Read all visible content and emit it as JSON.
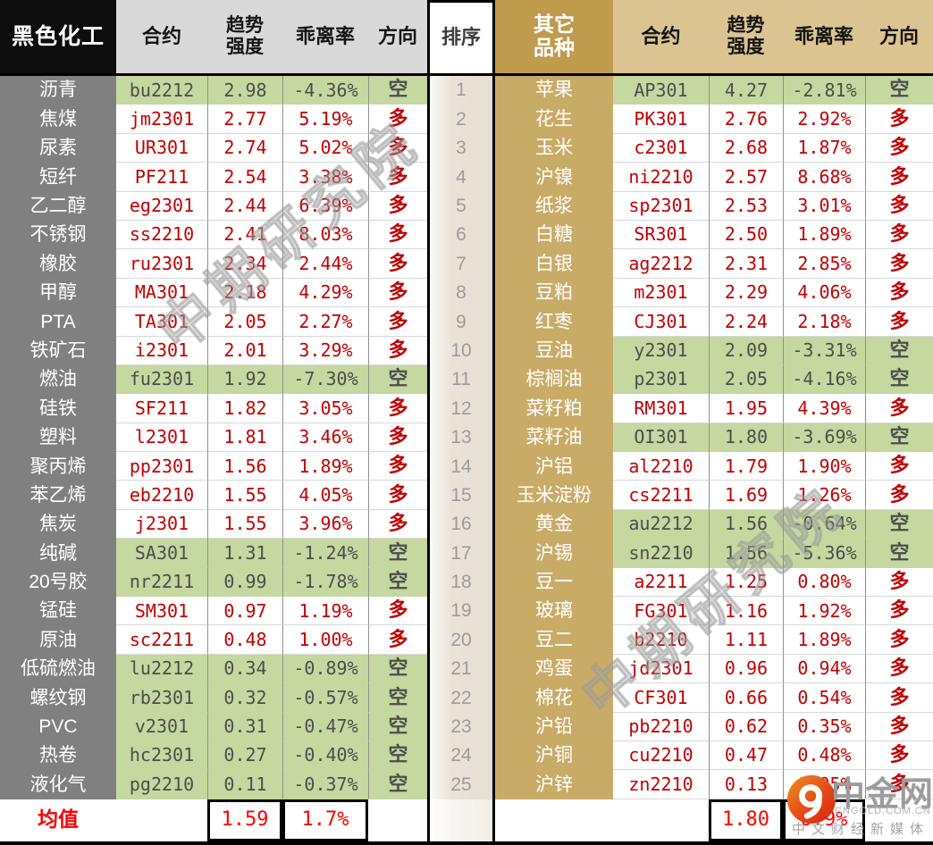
{
  "chart_data": [
    {
      "type": "table",
      "title": "黑色化工",
      "columns": [
        "黑色化工",
        "合约",
        "趋势强度",
        "乖离率",
        "方向"
      ],
      "header": {
        "variety": "黑色化工",
        "contract": "合约",
        "trend": "趋势\n强度",
        "deviation": "乖离率",
        "direction": "方向"
      },
      "rows": [
        {
          "name": "沥青",
          "contract": "bu2212",
          "trend": "2.98",
          "deviation": "-4.36%",
          "direction": "空"
        },
        {
          "name": "焦煤",
          "contract": "jm2301",
          "trend": "2.77",
          "deviation": "5.19%",
          "direction": "多"
        },
        {
          "name": "尿素",
          "contract": "UR301",
          "trend": "2.74",
          "deviation": "5.02%",
          "direction": "多"
        },
        {
          "name": "短纤",
          "contract": "PF211",
          "trend": "2.54",
          "deviation": "3.38%",
          "direction": "多"
        },
        {
          "name": "乙二醇",
          "contract": "eg2301",
          "trend": "2.44",
          "deviation": "6.39%",
          "direction": "多"
        },
        {
          "name": "不锈钢",
          "contract": "ss2210",
          "trend": "2.41",
          "deviation": "8.03%",
          "direction": "多"
        },
        {
          "name": "橡胶",
          "contract": "ru2301",
          "trend": "2.34",
          "deviation": "2.44%",
          "direction": "多"
        },
        {
          "name": "甲醇",
          "contract": "MA301",
          "trend": "2.18",
          "deviation": "4.29%",
          "direction": "多"
        },
        {
          "name": "PTA",
          "contract": "TA301",
          "trend": "2.05",
          "deviation": "2.27%",
          "direction": "多"
        },
        {
          "name": "铁矿石",
          "contract": "i2301",
          "trend": "2.01",
          "deviation": "3.29%",
          "direction": "多"
        },
        {
          "name": "燃油",
          "contract": "fu2301",
          "trend": "1.92",
          "deviation": "-7.30%",
          "direction": "空"
        },
        {
          "name": "硅铁",
          "contract": "SF211",
          "trend": "1.82",
          "deviation": "3.05%",
          "direction": "多"
        },
        {
          "name": "塑料",
          "contract": "l2301",
          "trend": "1.81",
          "deviation": "3.46%",
          "direction": "多"
        },
        {
          "name": "聚丙烯",
          "contract": "pp2301",
          "trend": "1.56",
          "deviation": "1.89%",
          "direction": "多"
        },
        {
          "name": "苯乙烯",
          "contract": "eb2210",
          "trend": "1.55",
          "deviation": "4.05%",
          "direction": "多"
        },
        {
          "name": "焦炭",
          "contract": "j2301",
          "trend": "1.55",
          "deviation": "3.96%",
          "direction": "多"
        },
        {
          "name": "纯碱",
          "contract": "SA301",
          "trend": "1.31",
          "deviation": "-1.24%",
          "direction": "空"
        },
        {
          "name": "20号胶",
          "contract": "nr2211",
          "trend": "0.99",
          "deviation": "-1.78%",
          "direction": "空"
        },
        {
          "name": "锰硅",
          "contract": "SM301",
          "trend": "0.97",
          "deviation": "1.19%",
          "direction": "多"
        },
        {
          "name": "原油",
          "contract": "sc2211",
          "trend": "0.48",
          "deviation": "1.00%",
          "direction": "多"
        },
        {
          "name": "低硫燃油",
          "contract": "lu2212",
          "trend": "0.34",
          "deviation": "-0.89%",
          "direction": "空"
        },
        {
          "name": "螺纹钢",
          "contract": "rb2301",
          "trend": "0.32",
          "deviation": "-0.57%",
          "direction": "空"
        },
        {
          "name": "PVC",
          "contract": "v2301",
          "trend": "0.31",
          "deviation": "-0.47%",
          "direction": "空"
        },
        {
          "name": "热卷",
          "contract": "hc2301",
          "trend": "0.27",
          "deviation": "-0.40%",
          "direction": "空"
        },
        {
          "name": "液化气",
          "contract": "pg2210",
          "trend": "0.11",
          "deviation": "-0.37%",
          "direction": "空"
        }
      ],
      "mean": {
        "label": "均值",
        "trend": "1.59",
        "deviation": "1.7%"
      }
    },
    {
      "type": "table",
      "title": "其它品种",
      "columns": [
        "其它品种",
        "合约",
        "趋势强度",
        "乖离率",
        "方向"
      ],
      "header": {
        "variety": "其它\n品种",
        "contract": "合约",
        "trend": "趋势\n强度",
        "deviation": "乖离率",
        "direction": "方向"
      },
      "rows": [
        {
          "name": "苹果",
          "contract": "AP301",
          "trend": "4.27",
          "deviation": "-2.81%",
          "direction": "空"
        },
        {
          "name": "花生",
          "contract": "PK301",
          "trend": "2.76",
          "deviation": "2.92%",
          "direction": "多"
        },
        {
          "name": "玉米",
          "contract": "c2301",
          "trend": "2.68",
          "deviation": "1.87%",
          "direction": "多"
        },
        {
          "name": "沪镍",
          "contract": "ni2210",
          "trend": "2.57",
          "deviation": "8.68%",
          "direction": "多"
        },
        {
          "name": "纸浆",
          "contract": "sp2301",
          "trend": "2.53",
          "deviation": "3.01%",
          "direction": "多"
        },
        {
          "name": "白糖",
          "contract": "SR301",
          "trend": "2.50",
          "deviation": "1.89%",
          "direction": "多"
        },
        {
          "name": "白银",
          "contract": "ag2212",
          "trend": "2.31",
          "deviation": "2.85%",
          "direction": "多"
        },
        {
          "name": "豆粕",
          "contract": "m2301",
          "trend": "2.29",
          "deviation": "4.06%",
          "direction": "多"
        },
        {
          "name": "红枣",
          "contract": "CJ301",
          "trend": "2.24",
          "deviation": "2.18%",
          "direction": "多"
        },
        {
          "name": "豆油",
          "contract": "y2301",
          "trend": "2.09",
          "deviation": "-3.31%",
          "direction": "空"
        },
        {
          "name": "棕榈油",
          "contract": "p2301",
          "trend": "2.05",
          "deviation": "-4.16%",
          "direction": "空"
        },
        {
          "name": "菜籽粕",
          "contract": "RM301",
          "trend": "1.95",
          "deviation": "4.39%",
          "direction": "多"
        },
        {
          "name": "菜籽油",
          "contract": "OI301",
          "trend": "1.80",
          "deviation": "-3.69%",
          "direction": "空"
        },
        {
          "name": "沪铝",
          "contract": "al2210",
          "trend": "1.79",
          "deviation": "1.90%",
          "direction": "多"
        },
        {
          "name": "玉米淀粉",
          "contract": "cs2211",
          "trend": "1.69",
          "deviation": "1.26%",
          "direction": "多"
        },
        {
          "name": "黄金",
          "contract": "au2212",
          "trend": "1.56",
          "deviation": "-0.64%",
          "direction": "空"
        },
        {
          "name": "沪锡",
          "contract": "sn2210",
          "trend": "1.56",
          "deviation": "-5.36%",
          "direction": "空"
        },
        {
          "name": "豆一",
          "contract": "a2211",
          "trend": "1.25",
          "deviation": "0.80%",
          "direction": "多"
        },
        {
          "name": "玻璃",
          "contract": "FG301",
          "trend": "1.16",
          "deviation": "1.92%",
          "direction": "多"
        },
        {
          "name": "豆二",
          "contract": "b2210",
          "trend": "1.11",
          "deviation": "1.89%",
          "direction": "多"
        },
        {
          "name": "鸡蛋",
          "contract": "jd2301",
          "trend": "0.96",
          "deviation": "0.94%",
          "direction": "多"
        },
        {
          "name": "棉花",
          "contract": "CF301",
          "trend": "0.66",
          "deviation": "0.54%",
          "direction": "多"
        },
        {
          "name": "沪铅",
          "contract": "pb2210",
          "trend": "0.62",
          "deviation": "0.35%",
          "direction": "多"
        },
        {
          "name": "沪铜",
          "contract": "cu2210",
          "trend": "0.47",
          "deviation": "0.48%",
          "direction": "多"
        },
        {
          "name": "沪锌",
          "contract": "zn2210",
          "trend": "0.13",
          "deviation": "0.05%",
          "direction": "多"
        }
      ],
      "mean": {
        "label": "",
        "trend": "1.80",
        "deviation": "0.9%"
      }
    }
  ],
  "rank": {
    "header": "排序",
    "values": [
      "1",
      "2",
      "3",
      "4",
      "5",
      "6",
      "7",
      "8",
      "9",
      "10",
      "11",
      "12",
      "13",
      "14",
      "15",
      "16",
      "17",
      "18",
      "19",
      "20",
      "21",
      "22",
      "23",
      "24",
      "25"
    ]
  },
  "watermark": {
    "text": "中期研究院"
  },
  "logo": {
    "brand": "中金网",
    "domain": "CNGOLD.COM.CN",
    "tagline": "中文财经新媒体"
  },
  "colors": {
    "left_title_bg": "#0d0d0d",
    "left_header_bg": "#d9d9d9",
    "left_label_bg": "#808080",
    "right_title_bg": "#bf9b4e",
    "right_header_bg": "#dbc491",
    "right_label_bg": "#c9ab68",
    "highlight_green": "#c5d8a0",
    "long_red": "#c00000",
    "short_gray": "#4d4d4d",
    "mean_red": "#fe0000"
  }
}
